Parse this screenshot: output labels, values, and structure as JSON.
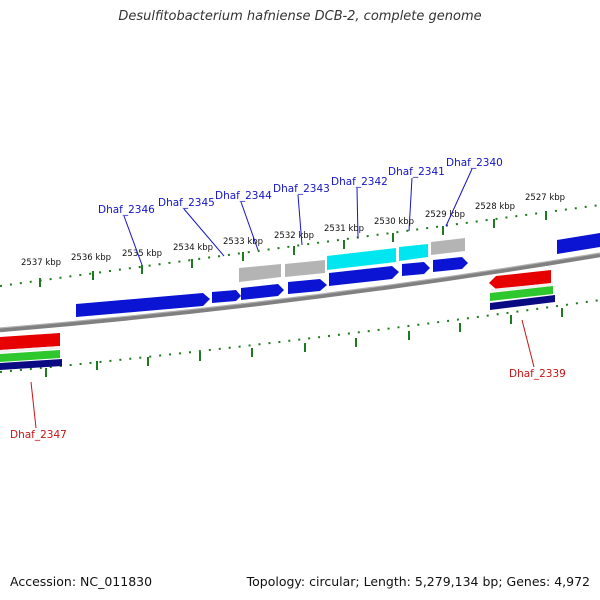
{
  "title": "Desulfitobacterium hafniense DCB-2, complete genome",
  "footer": {
    "accession": "Accession: NC_011830",
    "topology": "Topology: circular; Length: 5,279,134 bp; Genes: 4,972"
  },
  "colors": {
    "backbone": "#808080",
    "tick": "#1e7a1e",
    "gene_blue": "#0a14d2",
    "gene_grey": "#b4b4b4",
    "gene_cyan": "#00e6f0",
    "gene_red": "#e60000",
    "gene_green": "#2ec82e",
    "gene_navy": "#0a0a82",
    "label_blue": "#1414c8",
    "label_red": "#c81414"
  },
  "ticks": [
    {
      "label": "2537 kbp"
    },
    {
      "label": "2536 kbp"
    },
    {
      "label": "2535 kbp"
    },
    {
      "label": "2534 kbp"
    },
    {
      "label": "2533 kbp"
    },
    {
      "label": "2532 kbp"
    },
    {
      "label": "2531 kbp"
    },
    {
      "label": "2530 kbp"
    },
    {
      "label": "2529 kbp"
    },
    {
      "label": "2528 kbp"
    },
    {
      "label": "2527 kbp"
    }
  ],
  "genes_top": [
    {
      "label": "Dhaf_2346"
    },
    {
      "label": "Dhaf_2345"
    },
    {
      "label": "Dhaf_2344"
    },
    {
      "label": "Dhaf_2343"
    },
    {
      "label": "Dhaf_2342"
    },
    {
      "label": "Dhaf_2341"
    },
    {
      "label": "Dhaf_2340"
    }
  ],
  "genes_bottom": [
    {
      "label": "Dhaf_2347"
    },
    {
      "label": "Dhaf_2339"
    }
  ]
}
